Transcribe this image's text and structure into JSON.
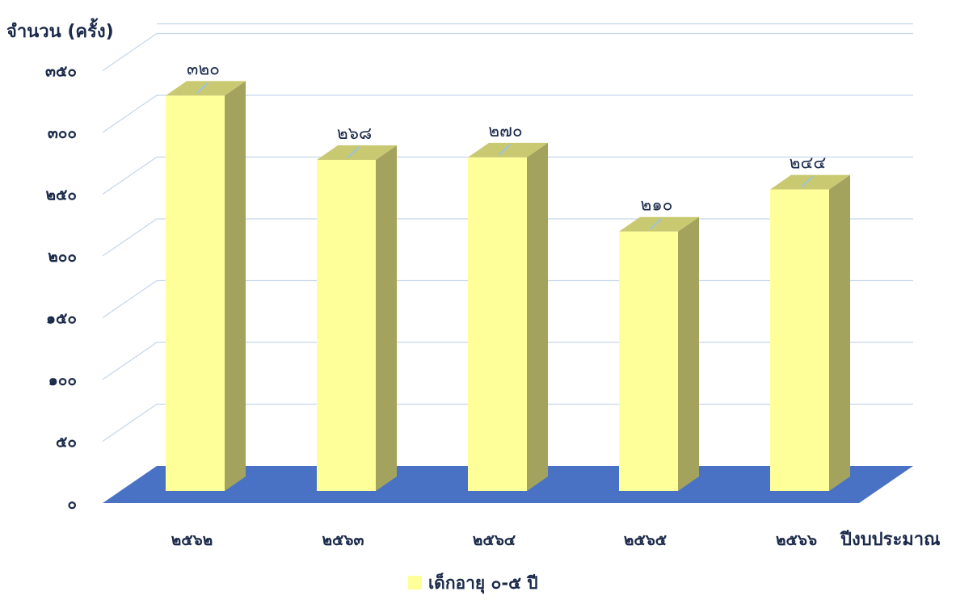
{
  "chart_data": {
    "type": "bar",
    "style": "3d-column",
    "categories": [
      "๒๕๖๒",
      "๒๕๖๓",
      "๒๕๖๔",
      "๒๕๖๕",
      "๒๕๖๖"
    ],
    "series": [
      {
        "name": "เด็กอายุ ๐-๕ ปี",
        "values": [
          320,
          268,
          270,
          210,
          244
        ],
        "value_labels": [
          "๓๒๐",
          "๒๖๘",
          "๒๗๐",
          "๒๑๐",
          "๒๔๔"
        ]
      }
    ],
    "ylabel": "จำนวน (ครั้ง)",
    "xlabel": "ปีงบประมาณ",
    "ylim": [
      0,
      350
    ],
    "yticks": [
      0,
      50,
      100,
      150,
      200,
      250,
      300,
      350
    ],
    "ytick_labels": [
      "๐",
      "๕๐",
      "๑๐๐",
      "๑๕๐",
      "๒๐๐",
      "๒๕๐",
      "๓๐๐",
      "๓๕๐"
    ],
    "grid": true,
    "legend": "bottom-center",
    "colors": {
      "bar_front": "#ffff99",
      "bar_side": "#a3a35e",
      "bar_top": "#c9c972",
      "floor": "#4a72c4",
      "grid": "#c5d6ea",
      "text": "#1b2a4a"
    }
  }
}
